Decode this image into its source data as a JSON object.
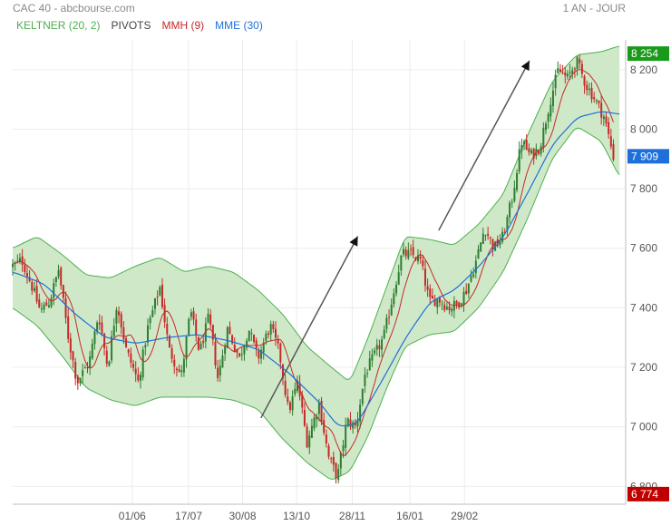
{
  "header": {
    "title": "CAC 40 - abcbourse.com",
    "period": "1 AN - JOUR"
  },
  "legend": [
    {
      "id": "keltner",
      "label": "KELTNER (20, 2)",
      "color": "#4caf50"
    },
    {
      "id": "pivots",
      "label": "PIVOTS",
      "color": "#444444"
    },
    {
      "id": "mmh",
      "label": "MMH (9)",
      "color": "#c62828"
    },
    {
      "id": "mme",
      "label": "MME (30)",
      "color": "#1e6fd9"
    }
  ],
  "chart_data": {
    "type": "candlestick",
    "ylim": [
      6740,
      8300
    ],
    "y_ticks": [
      6800,
      7000,
      7200,
      7400,
      7600,
      7800,
      8000,
      8200
    ],
    "y_tick_labels": [
      "6 800",
      "7 000",
      "7 200",
      "7 400",
      "7 600",
      "7 800",
      "8 000",
      "8 200"
    ],
    "x_ticks": [
      {
        "label": "01/06",
        "pos": 0.195
      },
      {
        "label": "17/07",
        "pos": 0.287
      },
      {
        "label": "30/08",
        "pos": 0.375
      },
      {
        "label": "13/10",
        "pos": 0.463
      },
      {
        "label": "28/11",
        "pos": 0.554
      },
      {
        "label": "16/01",
        "pos": 0.648
      },
      {
        "label": "29/02",
        "pos": 0.737
      }
    ],
    "close_path": [
      [
        0.0,
        7540
      ],
      [
        0.015,
        7560
      ],
      [
        0.03,
        7480
      ],
      [
        0.045,
        7390
      ],
      [
        0.06,
        7420
      ],
      [
        0.075,
        7530
      ],
      [
        0.09,
        7310
      ],
      [
        0.105,
        7150
      ],
      [
        0.125,
        7220
      ],
      [
        0.14,
        7380
      ],
      [
        0.155,
        7200
      ],
      [
        0.17,
        7420
      ],
      [
        0.185,
        7260
      ],
      [
        0.205,
        7150
      ],
      [
        0.22,
        7330
      ],
      [
        0.24,
        7470
      ],
      [
        0.255,
        7260
      ],
      [
        0.275,
        7170
      ],
      [
        0.29,
        7390
      ],
      [
        0.305,
        7250
      ],
      [
        0.32,
        7370
      ],
      [
        0.335,
        7160
      ],
      [
        0.35,
        7330
      ],
      [
        0.37,
        7230
      ],
      [
        0.385,
        7330
      ],
      [
        0.4,
        7230
      ],
      [
        0.42,
        7340
      ],
      [
        0.435,
        7250
      ],
      [
        0.45,
        7050
      ],
      [
        0.465,
        7150
      ],
      [
        0.48,
        6950
      ],
      [
        0.5,
        7080
      ],
      [
        0.515,
        6900
      ],
      [
        0.53,
        6830
      ],
      [
        0.545,
        7020
      ],
      [
        0.56,
        7000
      ],
      [
        0.575,
        7180
      ],
      [
        0.59,
        7240
      ],
      [
        0.605,
        7300
      ],
      [
        0.62,
        7440
      ],
      [
        0.635,
        7580
      ],
      [
        0.65,
        7580
      ],
      [
        0.665,
        7560
      ],
      [
        0.68,
        7420
      ],
      [
        0.695,
        7430
      ],
      [
        0.71,
        7400
      ],
      [
        0.725,
        7410
      ],
      [
        0.74,
        7460
      ],
      [
        0.755,
        7550
      ],
      [
        0.77,
        7670
      ],
      [
        0.785,
        7600
      ],
      [
        0.8,
        7640
      ],
      [
        0.815,
        7770
      ],
      [
        0.83,
        7960
      ],
      [
        0.845,
        7910
      ],
      [
        0.86,
        7940
      ],
      [
        0.875,
        8080
      ],
      [
        0.89,
        8200
      ],
      [
        0.905,
        8170
      ],
      [
        0.92,
        8230
      ],
      [
        0.935,
        8150
      ],
      [
        0.95,
        8100
      ],
      [
        0.965,
        8040
      ],
      [
        0.98,
        7909
      ]
    ],
    "mme_path": [
      [
        0.0,
        7520
      ],
      [
        0.05,
        7480
      ],
      [
        0.1,
        7380
      ],
      [
        0.15,
        7300
      ],
      [
        0.2,
        7280
      ],
      [
        0.25,
        7300
      ],
      [
        0.3,
        7310
      ],
      [
        0.35,
        7290
      ],
      [
        0.4,
        7260
      ],
      [
        0.45,
        7180
      ],
      [
        0.5,
        7080
      ],
      [
        0.53,
        7000
      ],
      [
        0.56,
        7010
      ],
      [
        0.6,
        7150
      ],
      [
        0.64,
        7300
      ],
      [
        0.68,
        7420
      ],
      [
        0.72,
        7460
      ],
      [
        0.76,
        7540
      ],
      [
        0.8,
        7640
      ],
      [
        0.84,
        7790
      ],
      [
        0.88,
        7950
      ],
      [
        0.92,
        8040
      ],
      [
        0.96,
        8060
      ],
      [
        0.99,
        8050
      ]
    ],
    "band_upper_path": [
      [
        0.0,
        7600
      ],
      [
        0.04,
        7640
      ],
      [
        0.08,
        7580
      ],
      [
        0.12,
        7510
      ],
      [
        0.16,
        7500
      ],
      [
        0.2,
        7540
      ],
      [
        0.24,
        7570
      ],
      [
        0.28,
        7520
      ],
      [
        0.32,
        7540
      ],
      [
        0.36,
        7520
      ],
      [
        0.4,
        7460
      ],
      [
        0.44,
        7380
      ],
      [
        0.48,
        7270
      ],
      [
        0.52,
        7200
      ],
      [
        0.55,
        7150
      ],
      [
        0.58,
        7300
      ],
      [
        0.61,
        7470
      ],
      [
        0.64,
        7640
      ],
      [
        0.68,
        7630
      ],
      [
        0.72,
        7610
      ],
      [
        0.76,
        7680
      ],
      [
        0.8,
        7780
      ],
      [
        0.84,
        7980
      ],
      [
        0.88,
        8160
      ],
      [
        0.92,
        8250
      ],
      [
        0.96,
        8260
      ],
      [
        0.99,
        8280
      ]
    ],
    "band_lower_path": [
      [
        0.0,
        7400
      ],
      [
        0.04,
        7340
      ],
      [
        0.08,
        7240
      ],
      [
        0.12,
        7130
      ],
      [
        0.16,
        7090
      ],
      [
        0.2,
        7070
      ],
      [
        0.24,
        7100
      ],
      [
        0.28,
        7100
      ],
      [
        0.32,
        7100
      ],
      [
        0.36,
        7090
      ],
      [
        0.4,
        7060
      ],
      [
        0.44,
        6960
      ],
      [
        0.48,
        6880
      ],
      [
        0.52,
        6820
      ],
      [
        0.55,
        6850
      ],
      [
        0.58,
        6970
      ],
      [
        0.61,
        7130
      ],
      [
        0.64,
        7270
      ],
      [
        0.68,
        7310
      ],
      [
        0.72,
        7320
      ],
      [
        0.76,
        7400
      ],
      [
        0.8,
        7520
      ],
      [
        0.84,
        7700
      ],
      [
        0.88,
        7900
      ],
      [
        0.92,
        8010
      ],
      [
        0.96,
        7960
      ],
      [
        0.99,
        7840
      ]
    ],
    "annotation_arrows": [
      {
        "from": [
          0.405,
          7030
        ],
        "to": [
          0.563,
          7640
        ]
      },
      {
        "from": [
          0.695,
          7660
        ],
        "to": [
          0.843,
          8230
        ]
      }
    ],
    "price_flags": [
      {
        "label": "8 254",
        "value": 8254,
        "color": "#1a9a1a"
      },
      {
        "label": "7 909",
        "value": 7909,
        "color": "#1e6fd9"
      },
      {
        "label": "6 774",
        "value": 6774,
        "color": "#c00000"
      }
    ]
  }
}
